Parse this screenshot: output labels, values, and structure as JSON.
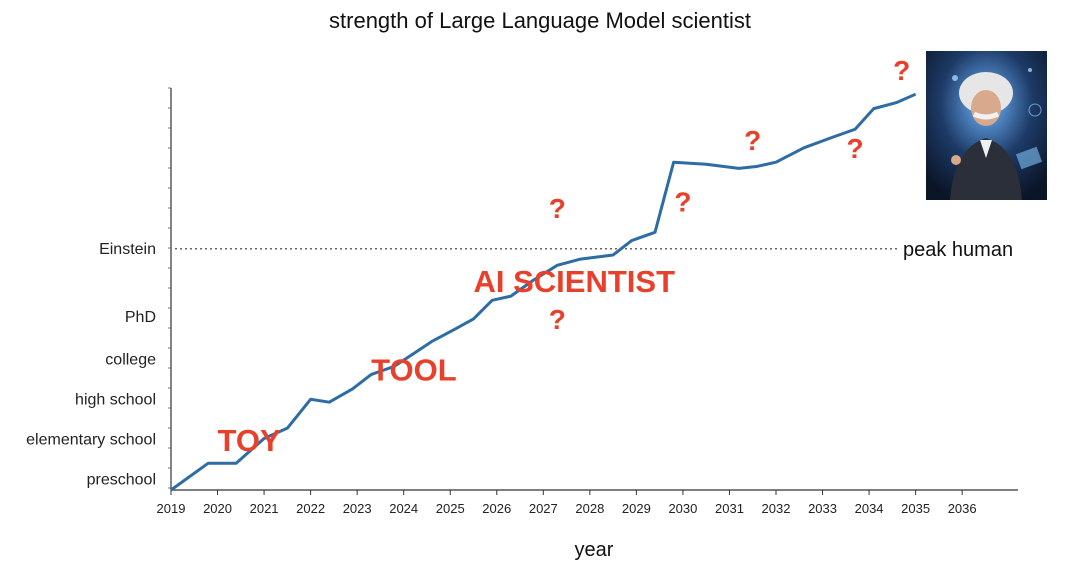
{
  "chart_data": {
    "type": "line",
    "title": "strength of Large Language Model scientist",
    "xlabel": "year",
    "ylabel": "",
    "xlim": [
      2019,
      2037.2
    ],
    "x_ticks": [
      2019,
      2020,
      2021,
      2022,
      2023,
      2024,
      2025,
      2026,
      2027,
      2028,
      2029,
      2030,
      2031,
      2032,
      2033,
      2034,
      2035,
      2036
    ],
    "ylim": [
      -0.25,
      9.5
    ],
    "y_categories": [
      "preschool",
      "elementary school",
      "high school",
      "college",
      "PhD",
      "Einstein"
    ],
    "y_category_values": [
      0,
      0.97,
      1.95,
      2.92,
      3.95,
      5.6
    ],
    "grid": false,
    "series": [
      {
        "name": "",
        "color": "#2e6ca4",
        "x": [
          2019.0,
          2019.8,
          2020.4,
          2021.0,
          2021.5,
          2022.0,
          2022.4,
          2022.9,
          2023.3,
          2023.8,
          2024.2,
          2024.6,
          2025.1,
          2025.5,
          2025.9,
          2026.3,
          2026.8,
          2027.3,
          2027.8,
          2028.5,
          2028.9,
          2029.4,
          2029.8,
          2030.5,
          2031.2,
          2031.6,
          2032.0,
          2032.6,
          2033.2,
          2033.7,
          2034.1,
          2034.6,
          2035.0
        ],
        "y": [
          -0.25,
          0.4,
          0.4,
          1.0,
          1.25,
          1.95,
          1.88,
          2.2,
          2.55,
          2.75,
          3.05,
          3.35,
          3.65,
          3.9,
          4.35,
          4.45,
          4.85,
          5.2,
          5.35,
          5.45,
          5.8,
          6.0,
          7.7,
          7.65,
          7.55,
          7.6,
          7.7,
          8.05,
          8.3,
          8.5,
          9.0,
          9.15,
          9.35
        ]
      }
    ],
    "reference_line": {
      "y": 5.6,
      "label": "peak human",
      "style": "dotted"
    },
    "phase_labels": [
      {
        "text": "TOY",
        "x": 2020.0,
        "y": 0.7,
        "color": "#e8402a"
      },
      {
        "text": "TOOL",
        "x": 2023.3,
        "y": 2.4,
        "color": "#e8402a"
      },
      {
        "text": "AI SCIENTIST",
        "x": 2025.5,
        "y": 4.55,
        "color": "#e8402a"
      }
    ],
    "annotations": [
      {
        "text": "?",
        "x": 2027.3,
        "y": 6.35,
        "color": "#e8402a"
      },
      {
        "text": "?",
        "x": 2027.3,
        "y": 3.65,
        "color": "#e8402a"
      },
      {
        "text": "?",
        "x": 2030.0,
        "y": 6.5,
        "color": "#e8402a"
      },
      {
        "text": "?",
        "x": 2031.5,
        "y": 8.0,
        "color": "#e8402a"
      },
      {
        "text": "?",
        "x": 2033.7,
        "y": 7.8,
        "color": "#e8402a"
      },
      {
        "text": "?",
        "x": 2034.7,
        "y": 9.7,
        "color": "#e8402a"
      }
    ],
    "decorative_image": "einstein-robot-portrait"
  }
}
